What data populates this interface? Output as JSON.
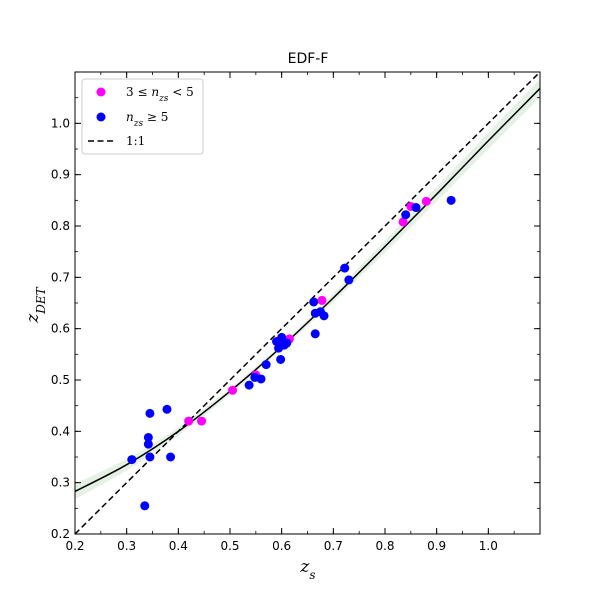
{
  "chart_data": {
    "type": "scatter",
    "title": "EDF-F",
    "xlabel": "z_s",
    "ylabel": "z_DET",
    "xlim": [
      0.2,
      1.1
    ],
    "ylim": [
      0.2,
      1.1
    ],
    "xticks": [
      0.2,
      0.3,
      0.4,
      0.5,
      0.6,
      0.7,
      0.8,
      0.9,
      1.0
    ],
    "yticks": [
      0.2,
      0.3,
      0.4,
      0.5,
      0.6,
      0.7,
      0.8,
      0.9,
      1.0
    ],
    "legend_position": "top-left",
    "series": [
      {
        "name": "3 ≤ n_zs < 5",
        "kind": "scatter",
        "color": "#ff00ff",
        "points": [
          [
            0.42,
            0.42
          ],
          [
            0.445,
            0.42
          ],
          [
            0.505,
            0.48
          ],
          [
            0.55,
            0.51
          ],
          [
            0.6,
            0.575
          ],
          [
            0.615,
            0.58
          ],
          [
            0.678,
            0.655
          ],
          [
            0.835,
            0.808
          ],
          [
            0.85,
            0.838
          ],
          [
            0.88,
            0.848
          ]
        ]
      },
      {
        "name": "n_zs ≥ 5",
        "kind": "scatter",
        "color": "#0000ff",
        "points": [
          [
            0.31,
            0.345
          ],
          [
            0.335,
            0.255
          ],
          [
            0.342,
            0.375
          ],
          [
            0.342,
            0.388
          ],
          [
            0.345,
            0.35
          ],
          [
            0.345,
            0.435
          ],
          [
            0.378,
            0.443
          ],
          [
            0.385,
            0.35
          ],
          [
            0.537,
            0.49
          ],
          [
            0.548,
            0.505
          ],
          [
            0.56,
            0.502
          ],
          [
            0.57,
            0.53
          ],
          [
            0.59,
            0.575
          ],
          [
            0.594,
            0.562
          ],
          [
            0.598,
            0.54
          ],
          [
            0.6,
            0.583
          ],
          [
            0.605,
            0.568
          ],
          [
            0.61,
            0.572
          ],
          [
            0.662,
            0.652
          ],
          [
            0.665,
            0.63
          ],
          [
            0.665,
            0.59
          ],
          [
            0.675,
            0.633
          ],
          [
            0.682,
            0.625
          ],
          [
            0.722,
            0.718
          ],
          [
            0.73,
            0.695
          ],
          [
            0.84,
            0.822
          ],
          [
            0.86,
            0.836
          ],
          [
            0.928,
            0.85
          ]
        ]
      },
      {
        "name": "1:1",
        "kind": "line",
        "style": "dashed",
        "color": "#000000",
        "x": [
          0.2,
          1.1
        ],
        "y": [
          0.2,
          1.1
        ]
      },
      {
        "kind": "line",
        "style": "solid",
        "color": "#000000",
        "x": [
          0.2,
          0.3,
          0.4,
          0.5,
          0.6,
          0.7,
          0.8,
          0.9,
          1.0,
          1.1
        ],
        "y": [
          0.283,
          0.335,
          0.4,
          0.478,
          0.565,
          0.66,
          0.76,
          0.862,
          0.966,
          1.068
        ]
      },
      {
        "kind": "band",
        "color": "#cfe6cf",
        "x": [
          0.2,
          0.3,
          0.4,
          0.5,
          0.6,
          0.7,
          0.8,
          0.9,
          1.0,
          1.1
        ],
        "lower": [
          0.268,
          0.324,
          0.392,
          0.472,
          0.56,
          0.652,
          0.748,
          0.848,
          0.95,
          1.05
        ],
        "upper": [
          0.298,
          0.346,
          0.408,
          0.484,
          0.57,
          0.668,
          0.772,
          0.876,
          0.982,
          1.086
        ]
      }
    ]
  }
}
